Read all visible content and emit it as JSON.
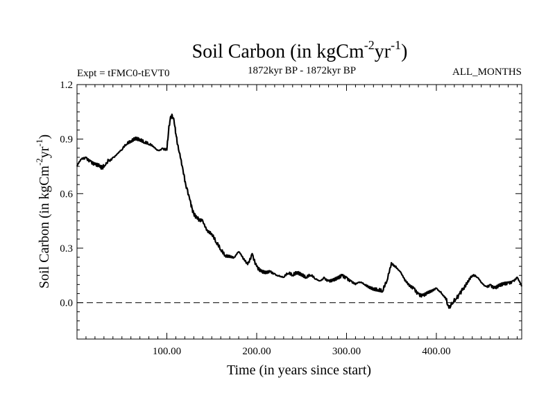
{
  "chart_data": {
    "type": "line",
    "title_main": "Soil Carbon (in kgCm",
    "title_exp1": "-2",
    "title_mid": "yr",
    "title_exp2": "-1",
    "title_close": ")",
    "subtitle_left": "Expt = tFMC0-tEVT0",
    "subtitle_center": "1872kyr BP - 1872kyr BP",
    "subtitle_right": "ALL_MONTHS",
    "xlabel": "Time (in years since start)",
    "ylabel_main": "Soil Carbon (in kgCm",
    "ylabel_exp1": "-2",
    "ylabel_mid": "yr",
    "ylabel_exp2": "-1",
    "ylabel_close": ")",
    "xlim": [
      0,
      495
    ],
    "ylim": [
      -0.2,
      1.2
    ],
    "xticks_major": [
      100,
      200,
      300,
      400
    ],
    "xtick_labels": [
      "100.00",
      "200.00",
      "300.00",
      "400.00"
    ],
    "yticks_major": [
      0.0,
      0.3,
      0.6,
      0.9,
      1.2
    ],
    "ytick_labels": [
      "0.0",
      "0.3",
      "0.6",
      "0.9",
      "1.2"
    ],
    "zero_line": 0.0,
    "series": [
      {
        "name": "Soil Carbon",
        "x": [
          0,
          5,
          10,
          15,
          20,
          25,
          28,
          32,
          35,
          40,
          45,
          50,
          55,
          60,
          65,
          70,
          75,
          80,
          85,
          90,
          95,
          100,
          102,
          104,
          106,
          108,
          110,
          112,
          115,
          118,
          121,
          125,
          128,
          130,
          133,
          136,
          140,
          145,
          150,
          155,
          160,
          165,
          170,
          175,
          180,
          185,
          190,
          195,
          200,
          205,
          210,
          215,
          220,
          225,
          230,
          235,
          240,
          245,
          250,
          255,
          260,
          265,
          270,
          275,
          280,
          285,
          290,
          295,
          300,
          305,
          310,
          315,
          320,
          325,
          330,
          335,
          340,
          345,
          350,
          355,
          360,
          365,
          370,
          375,
          380,
          385,
          390,
          395,
          400,
          405,
          410,
          414,
          418,
          422,
          426,
          430,
          435,
          440,
          445,
          450,
          455,
          460,
          465,
          470,
          475,
          480,
          485,
          490,
          495
        ],
        "y": [
          0.75,
          0.79,
          0.8,
          0.78,
          0.76,
          0.75,
          0.74,
          0.76,
          0.78,
          0.8,
          0.82,
          0.84,
          0.87,
          0.89,
          0.91,
          0.9,
          0.88,
          0.87,
          0.86,
          0.84,
          0.85,
          0.84,
          0.95,
          1.02,
          1.03,
          1.0,
          0.93,
          0.87,
          0.8,
          0.73,
          0.65,
          0.58,
          0.52,
          0.49,
          0.47,
          0.46,
          0.45,
          0.4,
          0.38,
          0.33,
          0.29,
          0.26,
          0.26,
          0.25,
          0.28,
          0.24,
          0.21,
          0.27,
          0.2,
          0.17,
          0.16,
          0.17,
          0.16,
          0.15,
          0.14,
          0.16,
          0.15,
          0.17,
          0.16,
          0.14,
          0.15,
          0.13,
          0.12,
          0.14,
          0.12,
          0.12,
          0.13,
          0.15,
          0.14,
          0.12,
          0.1,
          0.11,
          0.1,
          0.09,
          0.08,
          0.07,
          0.06,
          0.12,
          0.22,
          0.2,
          0.17,
          0.12,
          0.09,
          0.08,
          0.05,
          0.04,
          0.05,
          0.06,
          0.08,
          0.06,
          0.03,
          -0.03,
          0.0,
          0.02,
          0.05,
          0.08,
          0.12,
          0.15,
          0.14,
          0.11,
          0.09,
          0.1,
          0.08,
          0.09,
          0.1,
          0.11,
          0.12,
          0.14,
          0.09
        ]
      }
    ]
  }
}
